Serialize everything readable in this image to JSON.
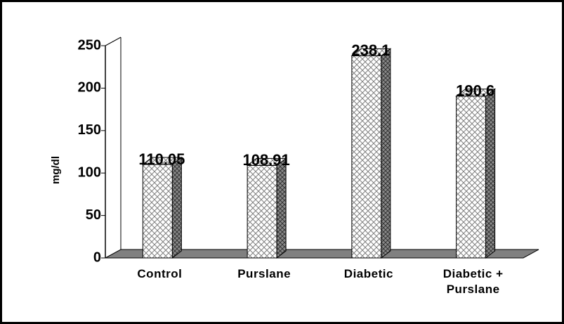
{
  "chart_data": {
    "type": "bar3d",
    "ylabel": "mg/dl",
    "categories": [
      "Control",
      "Purslane",
      "Diabetic",
      "Diabetic + Purslane"
    ],
    "values": [
      110.05,
      108.91,
      238.1,
      190.6
    ],
    "color": "#808080",
    "ylim": [
      0,
      250
    ],
    "yticks": [
      0,
      50,
      100,
      150,
      200,
      250
    ],
    "grid": false
  }
}
